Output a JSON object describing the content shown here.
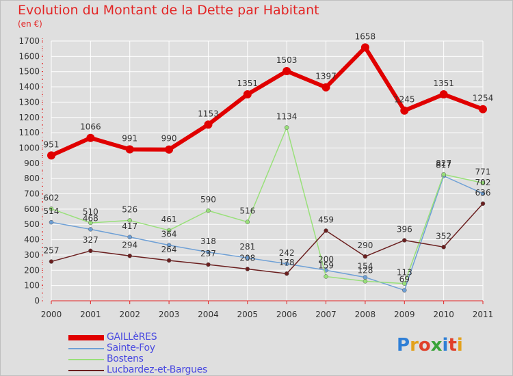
{
  "title": "Evolution du Montant de la Dette par Habitant",
  "subtitle": "(en €)",
  "logo": "Proxiti",
  "chart_data": {
    "type": "line",
    "title": "Evolution du Montant de la Dette par Habitant",
    "ylabel": "(en €)",
    "xlabel": "",
    "ylim": [
      0,
      1700
    ],
    "y_ticks": [
      0,
      100,
      200,
      300,
      400,
      500,
      600,
      700,
      800,
      900,
      1000,
      1100,
      1200,
      1300,
      1400,
      1500,
      1600,
      1700
    ],
    "grid": true,
    "legend_position": "bottom-left",
    "categories": [
      "2000",
      "2001",
      "2002",
      "2003",
      "2004",
      "2005",
      "2006",
      "2007",
      "2008",
      "2009",
      "2010",
      "2011"
    ],
    "series": [
      {
        "name": "GAILLèRES",
        "color": "#e00000",
        "width": 6,
        "values": [
          951,
          1066,
          991,
          990,
          1153,
          1351,
          1503,
          1397,
          1658,
          1245,
          1351,
          1254
        ]
      },
      {
        "name": "Sainte-Foy",
        "color": "#6ea0d6",
        "width": 1.5,
        "values": [
          514,
          468,
          417,
          364,
          318,
          281,
          242,
          200,
          154,
          69,
          817,
          702
        ]
      },
      {
        "name": "Bostens",
        "color": "#99e07a",
        "width": 1.5,
        "values": [
          602,
          510,
          526,
          461,
          590,
          516,
          1134,
          159,
          128,
          113,
          827,
          771
        ]
      },
      {
        "name": "Lucbardez-et-Bargues",
        "color": "#6b1f1f",
        "width": 1.5,
        "values": [
          257,
          327,
          294,
          264,
          237,
          208,
          178,
          459,
          290,
          396,
          352,
          636
        ]
      }
    ]
  }
}
